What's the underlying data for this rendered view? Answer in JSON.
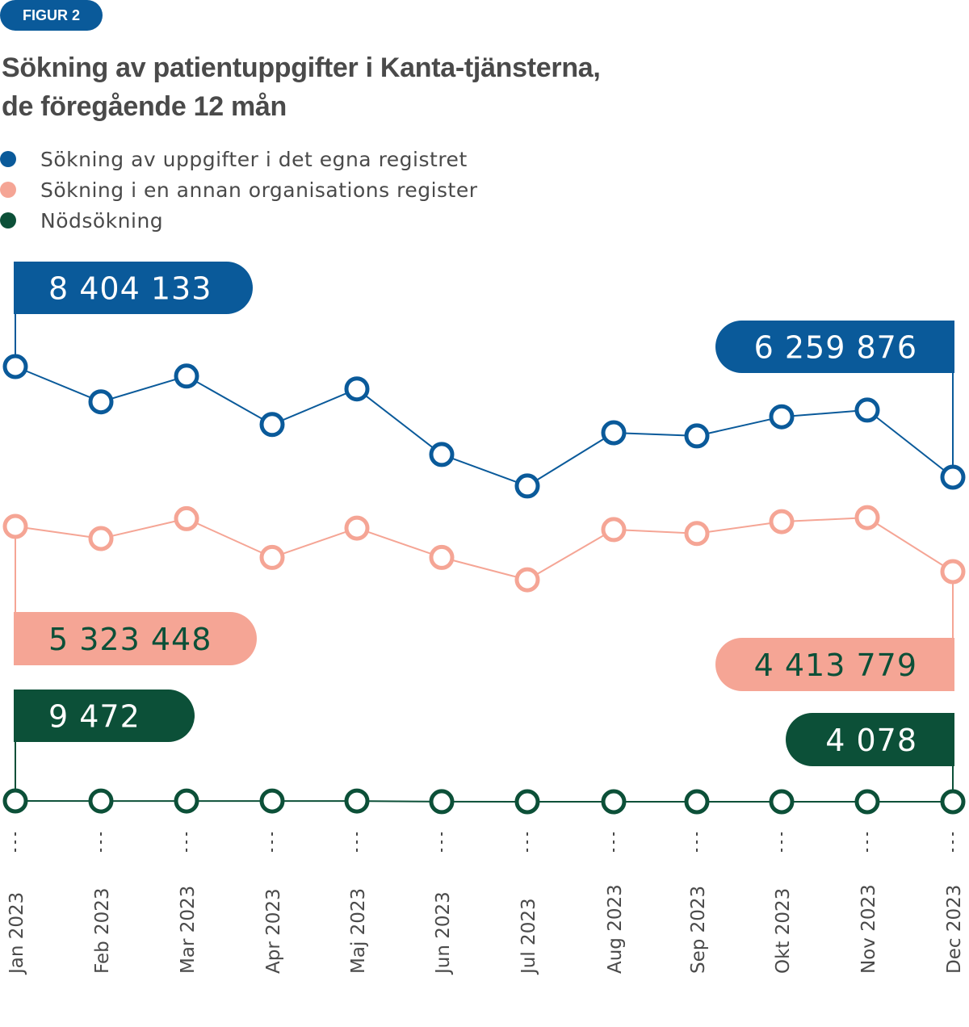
{
  "figure_badge": "FIGUR 2",
  "title_line1": "Sökning av patientuppgifter i Kanta-tjänsterna,",
  "title_line2": "de föregående 12 mån",
  "colors": {
    "blue": "#0a5a9a",
    "salmon": "#f5a595",
    "green": "#0c5038",
    "text": "#4a4a4a"
  },
  "chart_data": {
    "type": "line",
    "title": "Sökning av patientuppgifter i Kanta-tjänsterna, de föregående 12 mån",
    "categories": [
      "Jan 2023",
      "Feb 2023",
      "Mar 2023",
      "Apr 2023",
      "Maj 2023",
      "Jun 2023",
      "Jul 2023",
      "Aug 2023",
      "Sep 2023",
      "Okt 2023",
      "Nov 2023",
      "Dec 2023"
    ],
    "legend": [
      "Sökning av uppgifter i det egna registret",
      "Sökning i en annan organisations register",
      "Nödsökning"
    ],
    "series": [
      {
        "name": "Sökning av uppgifter i det egna registret",
        "color": "#0a5a9a",
        "values": [
          8404133,
          7720000,
          8220000,
          7280000,
          7970000,
          6700000,
          6090000,
          7120000,
          7060000,
          7430000,
          7560000,
          6259876
        ],
        "start_label": "8 404 133",
        "end_label": "6 259 876"
      },
      {
        "name": "Sökning i en annan organisations register",
        "color": "#f5a595",
        "values": [
          5323448,
          5080000,
          5480000,
          4700000,
          5290000,
          4700000,
          4250000,
          5260000,
          5180000,
          5420000,
          5500000,
          4413779
        ],
        "start_label": "5 323 448",
        "end_label": "4 413 779"
      },
      {
        "name": "Nödsökning",
        "color": "#0c5038",
        "values": [
          9472,
          9000,
          9100,
          8900,
          9000,
          4500,
          4200,
          4300,
          4100,
          4300,
          4200,
          4078
        ],
        "start_label": "9 472",
        "end_label": "4 078"
      }
    ]
  }
}
